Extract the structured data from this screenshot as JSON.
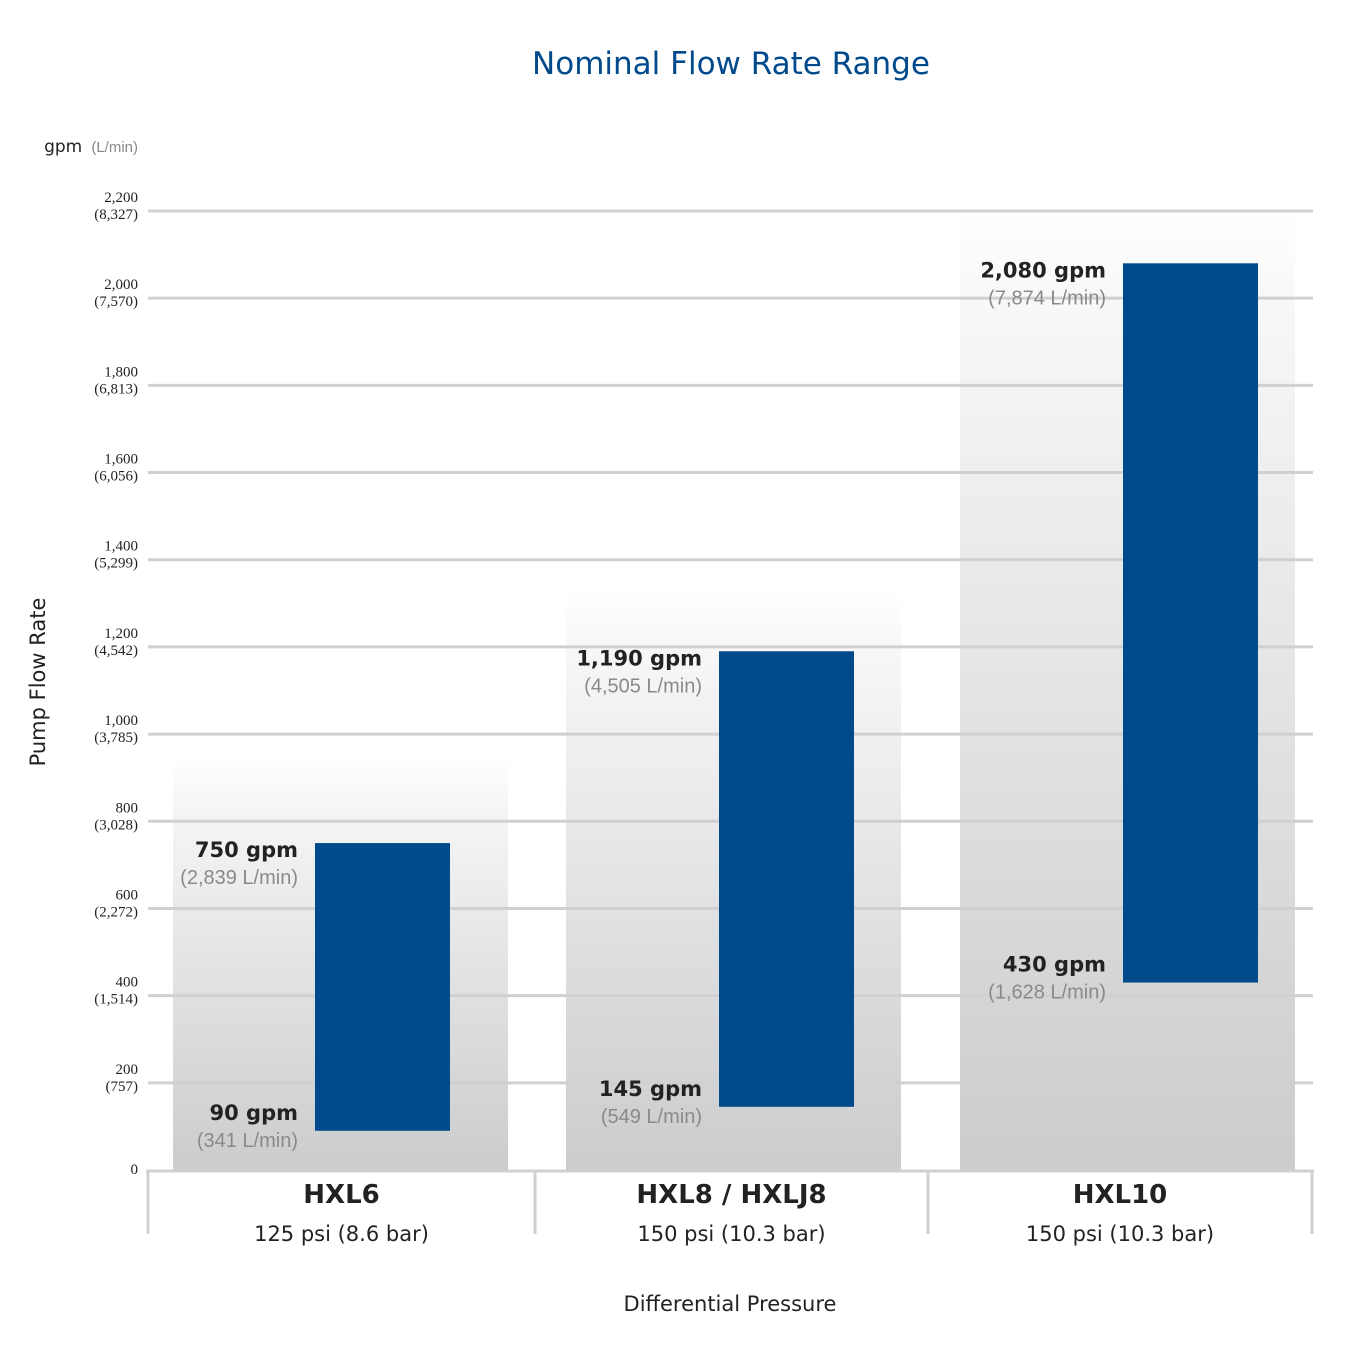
{
  "chart_data": {
    "type": "bar",
    "subtype": "floating-range",
    "title": "Nominal Flow Rate Range",
    "ylabel": "Pump Flow Rate",
    "xlabel": "Differential Pressure",
    "units_label": {
      "primary": "gpm",
      "secondary": "(L/min)"
    },
    "ylim": [
      0,
      2200
    ],
    "grid": true,
    "yticks": [
      {
        "value": 0,
        "label": "0",
        "sub": ""
      },
      {
        "value": 200,
        "label": "200",
        "sub": "(757)"
      },
      {
        "value": 400,
        "label": "400",
        "sub": "(1,514)"
      },
      {
        "value": 600,
        "label": "600",
        "sub": "(2,272)"
      },
      {
        "value": 800,
        "label": "800",
        "sub": "(3,028)"
      },
      {
        "value": 1000,
        "label": "1,000",
        "sub": "(3,785)"
      },
      {
        "value": 1200,
        "label": "1,200",
        "sub": "(4,542)"
      },
      {
        "value": 1400,
        "label": "1,400",
        "sub": "(5,299)"
      },
      {
        "value": 1600,
        "label": "1,600",
        "sub": "(6,056)"
      },
      {
        "value": 1800,
        "label": "1,800",
        "sub": "(6,813)"
      },
      {
        "value": 2000,
        "label": "2,000",
        "sub": "(7,570)"
      },
      {
        "value": 2200,
        "label": "2,200",
        "sub": "(8,327)"
      }
    ],
    "categories": [
      {
        "name": "HXL6",
        "pressure": "125 psi (8.6 bar)",
        "min": 90,
        "max": 750,
        "min_label": "90 gpm",
        "min_sub": "(341 L/min)",
        "max_label": "750 gpm",
        "max_sub": "(2,839 L/min)",
        "backdrop_top": 950
      },
      {
        "name": "HXL8 / HXLJ8",
        "pressure": "150 psi (10.3 bar)",
        "min": 145,
        "max": 1190,
        "min_label": "145 gpm",
        "min_sub": "(549 L/min)",
        "max_label": "1,190 gpm",
        "max_sub": "(4,505 L/min)",
        "backdrop_top": 1330
      },
      {
        "name": "HXL10",
        "pressure": "150 psi (10.3 bar)",
        "min": 430,
        "max": 2080,
        "min_label": "430 gpm",
        "min_sub": "(1,628 L/min)",
        "max_label": "2,080 gpm",
        "max_sub": "(7,874 L/min)",
        "backdrop_top": 2200
      }
    ],
    "colors": {
      "bar": "#004a8c",
      "grid": "#d0d0d0",
      "backdrop": "#cbcccd",
      "title": "#004a8c"
    }
  }
}
